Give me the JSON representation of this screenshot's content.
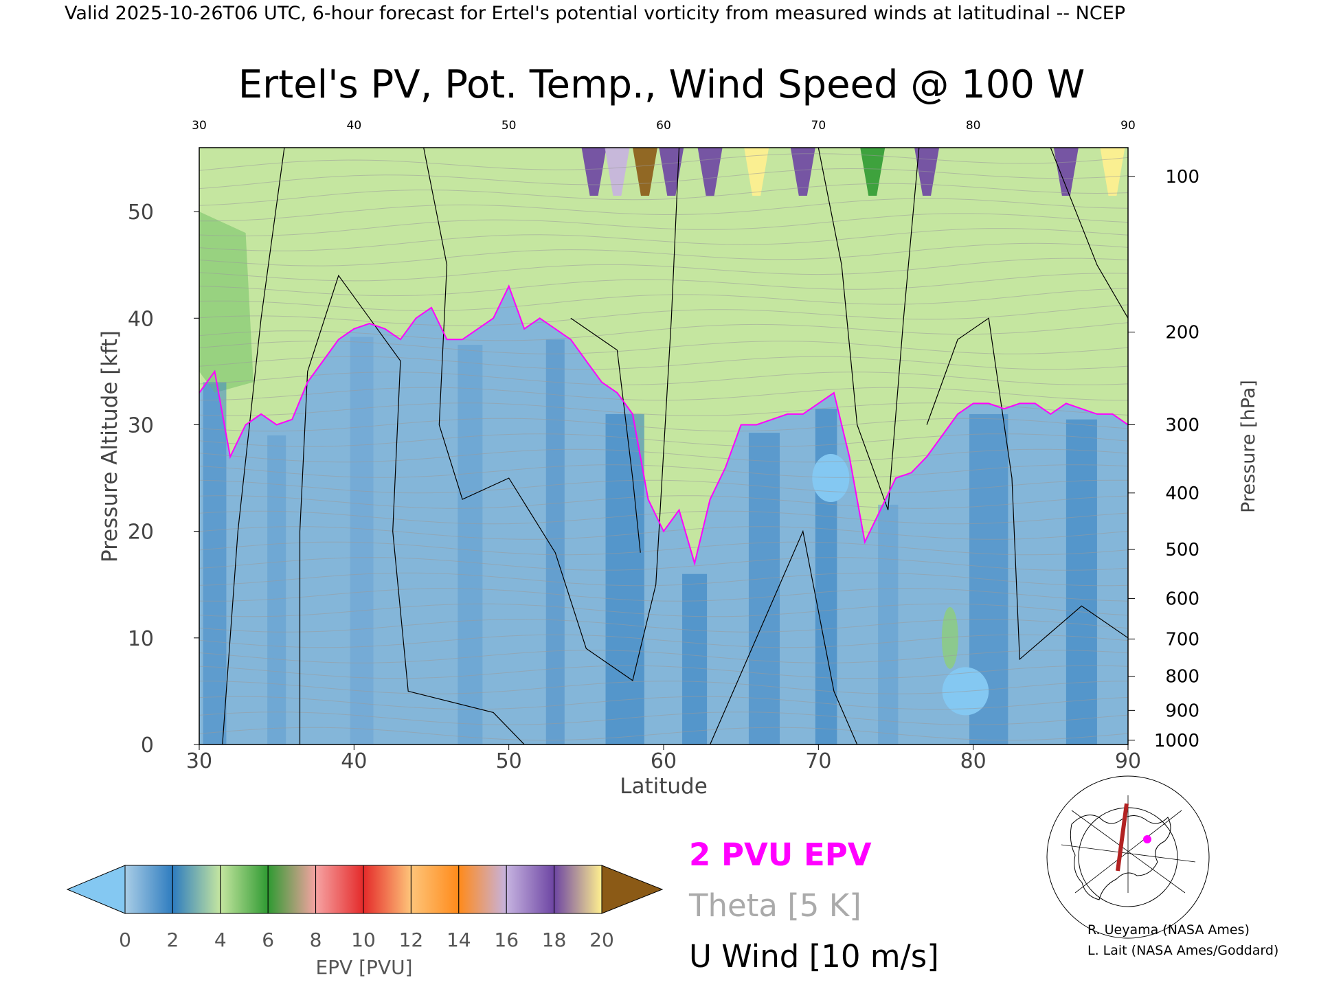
{
  "header": "Valid 2025-10-26T06 UTC, 6-hour forecast for Ertel's potential vorticity from measured winds at latitudinal -- NCEP",
  "chart_data": {
    "type": "heatmap",
    "title": "Ertel's PV, Pot. Temp., Wind Speed @ 100 W",
    "xlabel": "Latitude",
    "ylabel": "Pressure Altitude [kft]",
    "y2label": "Pressure [hPa]",
    "xlim": [
      30,
      90
    ],
    "ylim": [
      0,
      56
    ],
    "x_ticks": [
      "30",
      "40",
      "50",
      "60",
      "70",
      "80",
      "90"
    ],
    "y_ticks": [
      "0",
      "10",
      "20",
      "30",
      "40",
      "50"
    ],
    "pressure_ticks": [
      {
        "label": "100",
        "kft": 53.3
      },
      {
        "label": "200",
        "kft": 38.7
      },
      {
        "label": "300",
        "kft": 30.0
      },
      {
        "label": "400",
        "kft": 23.6
      },
      {
        "label": "500",
        "kft": 18.3
      },
      {
        "label": "600",
        "kft": 13.7
      },
      {
        "label": "700",
        "kft": 9.9
      },
      {
        "label": "800",
        "kft": 6.4
      },
      {
        "label": "900",
        "kft": 3.2
      },
      {
        "label": "1000",
        "kft": 0.4
      }
    ],
    "tropopause_2pvu_kft": [
      [
        30,
        33
      ],
      [
        31,
        35
      ],
      [
        32,
        27
      ],
      [
        33,
        30
      ],
      [
        34,
        31
      ],
      [
        35,
        30
      ],
      [
        36,
        30.5
      ],
      [
        37,
        34
      ],
      [
        38,
        36
      ],
      [
        39,
        38
      ],
      [
        40,
        39
      ],
      [
        41,
        39.5
      ],
      [
        42,
        39
      ],
      [
        43,
        38
      ],
      [
        44,
        40
      ],
      [
        45,
        41
      ],
      [
        46,
        38
      ],
      [
        47,
        38
      ],
      [
        48,
        39
      ],
      [
        49,
        40
      ],
      [
        50,
        43
      ],
      [
        51,
        39
      ],
      [
        52,
        40
      ],
      [
        53,
        39
      ],
      [
        54,
        38
      ],
      [
        55,
        36
      ],
      [
        56,
        34
      ],
      [
        57,
        33
      ],
      [
        58,
        31
      ],
      [
        59,
        23
      ],
      [
        60,
        20
      ],
      [
        61,
        22
      ],
      [
        62,
        17
      ],
      [
        63,
        23
      ],
      [
        64,
        26
      ],
      [
        65,
        30
      ],
      [
        66,
        30
      ],
      [
        67,
        30.5
      ],
      [
        68,
        31
      ],
      [
        69,
        31
      ],
      [
        70,
        32
      ],
      [
        71,
        33
      ],
      [
        72,
        27
      ],
      [
        73,
        19
      ],
      [
        74,
        22
      ],
      [
        75,
        25
      ],
      [
        76,
        25.5
      ],
      [
        77,
        27
      ],
      [
        78,
        29
      ],
      [
        79,
        31
      ],
      [
        80,
        32
      ],
      [
        81,
        32
      ],
      [
        82,
        31.5
      ],
      [
        83,
        32
      ],
      [
        84,
        32
      ],
      [
        85,
        31
      ],
      [
        86,
        32
      ],
      [
        87,
        31.5
      ],
      [
        88,
        31
      ],
      [
        89,
        31
      ],
      [
        90,
        30
      ]
    ],
    "colorbar": {
      "label": "EPV [PVU]",
      "tick_labels": [
        "0",
        "2",
        "4",
        "6",
        "8",
        "10",
        "12",
        "14",
        "16",
        "18",
        "20"
      ],
      "colors": [
        "#a9cde6",
        "#2e7cbf",
        "#c5e6a0",
        "#2f9a32",
        "#f6a3a3",
        "#e42a2a",
        "#fec57a",
        "#ff8a1a",
        "#c6b3e0",
        "#6d45a3",
        "#fff08f",
        "#8b5a16"
      ],
      "under_color": "#84c8f2",
      "over_color": "#8b5a16"
    },
    "legend": [
      {
        "label": "2 PVU EPV",
        "color": "#ff00ff"
      },
      {
        "label": "Theta [5 K]",
        "color": "#aaaaaa"
      },
      {
        "label": "U Wind [10 m/s]",
        "color": "#000000"
      }
    ]
  },
  "credits": [
    "R. Ueyama (NASA Ames)",
    "L. Lait (NASA Ames/Goddard)"
  ]
}
